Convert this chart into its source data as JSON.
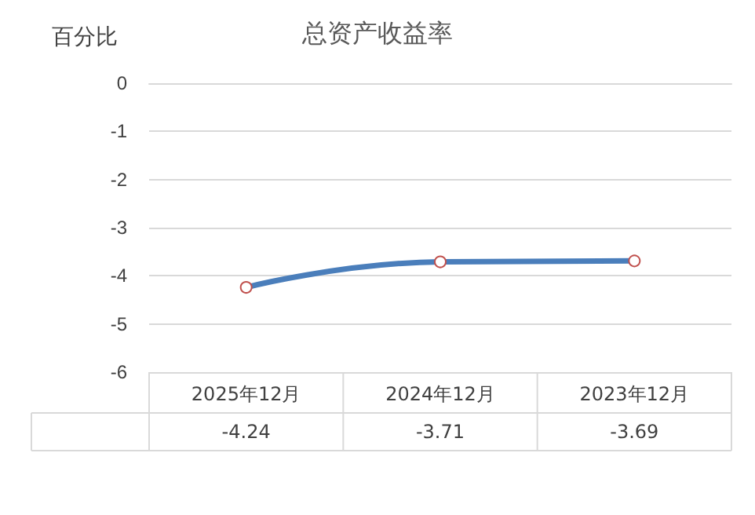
{
  "chart_data": {
    "type": "line",
    "title": "总资产收益率",
    "ylabel": "百分比",
    "categories": [
      "2025年12月",
      "2024年12月",
      "2023年12月"
    ],
    "series": [
      {
        "color": "#4a7ebb",
        "values": [
          -4.24,
          -3.71,
          -3.69
        ]
      }
    ],
    "ylim": [
      -6,
      0
    ],
    "yticks": [
      0,
      -1,
      -2,
      -3,
      -4,
      -5,
      -6
    ],
    "grid": "y",
    "marker": "circle",
    "line_style": "solid",
    "data_labels": true
  }
}
